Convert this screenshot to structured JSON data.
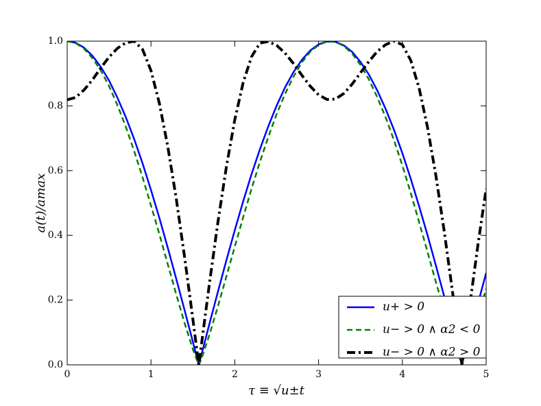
{
  "chart_data": {
    "type": "line",
    "xlabel": "τ ≡ √u±t",
    "ylabel": "a(t)/amax",
    "x": [
      0,
      0.1,
      0.2,
      0.3,
      0.4,
      0.5,
      0.6,
      0.7,
      0.8,
      0.9,
      1.0,
      1.1,
      1.2,
      1.3,
      1.4,
      1.5,
      1.57,
      1.6,
      1.7,
      1.8,
      1.9,
      2.0,
      2.1,
      2.2,
      2.3,
      2.4,
      2.5,
      2.6,
      2.7,
      2.8,
      2.9,
      3.0,
      3.1,
      3.2,
      3.3,
      3.4,
      3.5,
      3.6,
      3.7,
      3.8,
      3.9,
      4.0,
      4.1,
      4.2,
      4.3,
      4.4,
      4.5,
      4.6,
      4.7,
      4.71,
      4.8,
      4.9,
      5.0
    ],
    "series": [
      {
        "name": "u+ > 0",
        "color": "#0000ff",
        "linestyle": "solid",
        "values": [
          1,
          0.995,
          0.98,
          0.955,
          0.921,
          0.878,
          0.825,
          0.765,
          0.697,
          0.622,
          0.54,
          0.454,
          0.362,
          0.267,
          0.17,
          0.071,
          0,
          0.029,
          0.129,
          0.227,
          0.323,
          0.416,
          0.505,
          0.589,
          0.666,
          0.737,
          0.801,
          0.857,
          0.904,
          0.942,
          0.971,
          0.99,
          0.999,
          0.998,
          0.987,
          0.967,
          0.936,
          0.897,
          0.848,
          0.791,
          0.726,
          0.654,
          0.575,
          0.49,
          0.401,
          0.307,
          0.211,
          0.112,
          0.012,
          0,
          0.088,
          0.187,
          0.284
        ]
      },
      {
        "name": "u− > 0 ∧ α2 < 0",
        "color": "#008000",
        "linestyle": "dashed",
        "values": [
          1,
          0.994,
          0.977,
          0.948,
          0.91,
          0.861,
          0.802,
          0.735,
          0.66,
          0.579,
          0.492,
          0.404,
          0.311,
          0.219,
          0.13,
          0.048,
          0,
          0.017,
          0.095,
          0.182,
          0.273,
          0.365,
          0.456,
          0.544,
          0.627,
          0.704,
          0.775,
          0.837,
          0.89,
          0.934,
          0.967,
          0.988,
          0.999,
          0.998,
          0.985,
          0.962,
          0.927,
          0.882,
          0.827,
          0.765,
          0.694,
          0.616,
          0.531,
          0.441,
          0.349,
          0.256,
          0.167,
          0.08,
          0.008,
          0,
          0.061,
          0.146,
          0.235
        ]
      },
      {
        "name": "u− > 0 ∧ α2 > 0",
        "color": "#000000",
        "linestyle": "dashdot",
        "values": [
          0.819,
          0.826,
          0.849,
          0.88,
          0.917,
          0.951,
          0.978,
          0.995,
          1.0,
          0.974,
          0.909,
          0.808,
          0.675,
          0.516,
          0.335,
          0.141,
          0,
          0.058,
          0.256,
          0.443,
          0.612,
          0.757,
          0.872,
          0.952,
          0.994,
          0.999,
          0.987,
          0.963,
          0.931,
          0.895,
          0.861,
          0.834,
          0.82,
          0.821,
          0.838,
          0.867,
          0.902,
          0.937,
          0.968,
          0.989,
          1.0,
          0.989,
          0.941,
          0.855,
          0.734,
          0.585,
          0.412,
          0.223,
          0.025,
          0,
          0.175,
          0.367,
          0.544
        ]
      }
    ],
    "xlim": [
      0,
      5
    ],
    "ylim": [
      0,
      1
    ],
    "xticks": [
      0,
      1,
      2,
      3,
      4,
      5
    ],
    "yticks": [
      {
        "value": 0,
        "label": "0.0"
      },
      {
        "value": 0.2,
        "label": "0.2"
      },
      {
        "value": 0.4,
        "label": "0.4"
      },
      {
        "value": 0.6,
        "label": "0.6"
      },
      {
        "value": 0.8,
        "label": "0.8"
      },
      {
        "value": 1,
        "label": "1.0"
      }
    ],
    "legend": "lower right"
  }
}
